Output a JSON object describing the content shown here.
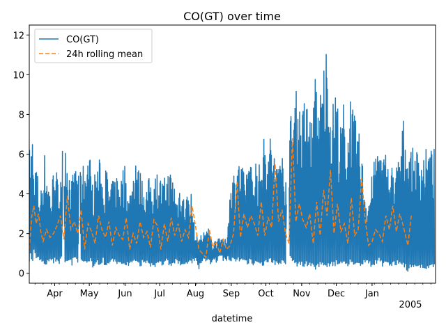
{
  "chart_data": {
    "type": "line",
    "title": "CO(GT) over time",
    "xlabel": "datetime",
    "ylabel": "",
    "xlim": [
      "2004-03-10",
      "2005-02-25"
    ],
    "ylim": [
      -0.5,
      12.5
    ],
    "x_ticks": [
      {
        "date": "2004-04-01",
        "label": "Apr"
      },
      {
        "date": "2004-05-01",
        "label": "May"
      },
      {
        "date": "2004-06-01",
        "label": "Jun"
      },
      {
        "date": "2004-07-01",
        "label": "Jul"
      },
      {
        "date": "2004-08-01",
        "label": "Aug"
      },
      {
        "date": "2004-09-01",
        "label": "Sep"
      },
      {
        "date": "2004-10-01",
        "label": "Oct"
      },
      {
        "date": "2004-11-01",
        "label": "Nov"
      },
      {
        "date": "2004-12-01",
        "label": "Dec"
      },
      {
        "date": "2005-01-01",
        "label": "Jan"
      }
    ],
    "x_year_label": "2005",
    "y_ticks": [
      0,
      2,
      4,
      6,
      8,
      10,
      12
    ],
    "legend_position": "upper-left",
    "series": [
      {
        "name": "CO(GT)",
        "color": "#1f77b4",
        "style": "solid",
        "x": [
          "2004-03-10",
          "2004-03-11",
          "2004-03-12",
          "2004-03-13",
          "2004-03-14",
          "2004-03-16",
          "2004-03-18",
          "2004-03-20",
          "2004-03-23",
          "2004-03-26",
          "2004-03-29",
          "2004-04-01",
          "2004-04-04",
          "2004-04-07",
          "2004-04-10",
          "2004-04-13",
          "2004-04-16",
          "2004-04-19",
          "2004-04-22",
          "2004-04-25",
          "2004-04-28",
          "2004-05-01",
          "2004-05-04",
          "2004-05-07",
          "2004-05-10",
          "2004-05-13",
          "2004-05-16",
          "2004-05-19",
          "2004-05-22",
          "2004-05-25",
          "2004-05-28",
          "2004-06-01",
          "2004-06-04",
          "2004-06-07",
          "2004-06-10",
          "2004-06-13",
          "2004-06-16",
          "2004-06-19",
          "2004-06-22",
          "2004-06-25",
          "2004-06-28",
          "2004-07-01",
          "2004-07-04",
          "2004-07-07",
          "2004-07-10",
          "2004-07-13",
          "2004-07-16",
          "2004-07-19",
          "2004-07-22",
          "2004-07-25",
          "2004-07-28",
          "2004-08-01",
          "2004-08-04",
          "2004-08-07",
          "2004-08-10",
          "2004-08-13",
          "2004-08-16",
          "2004-08-19",
          "2004-08-22",
          "2004-08-25",
          "2004-08-28",
          "2004-09-01",
          "2004-09-04",
          "2004-09-07",
          "2004-09-10",
          "2004-09-13",
          "2004-09-16",
          "2004-09-19",
          "2004-09-22",
          "2004-09-25",
          "2004-09-28",
          "2004-10-01",
          "2004-10-04",
          "2004-10-07",
          "2004-10-10",
          "2004-10-13",
          "2004-10-16",
          "2004-10-19",
          "2004-10-22",
          "2004-10-25",
          "2004-10-28",
          "2004-11-01",
          "2004-11-04",
          "2004-11-07",
          "2004-11-10",
          "2004-11-13",
          "2004-11-16",
          "2004-11-19",
          "2004-11-22",
          "2004-11-25",
          "2004-11-28",
          "2004-12-01",
          "2004-12-04",
          "2004-12-07",
          "2004-12-10",
          "2004-12-13",
          "2004-12-16",
          "2004-12-19",
          "2004-12-22",
          "2004-12-25",
          "2004-12-28",
          "2005-01-01",
          "2005-01-04",
          "2005-01-07",
          "2005-01-10",
          "2005-01-13",
          "2005-01-16",
          "2005-01-19",
          "2005-01-22",
          "2005-01-25",
          "2005-01-28",
          "2005-02-01",
          "2005-02-04"
        ],
        "low": [
          0.6,
          0.8,
          0.5,
          0.4,
          1.0,
          0.5,
          0.6,
          0.5,
          0.3,
          0.4,
          0.5,
          0.5,
          0.4,
          0.6,
          0.3,
          0.5,
          0.4,
          0.7,
          0.3,
          0.5,
          0.4,
          0.6,
          0.3,
          0.5,
          0.4,
          0.5,
          0.3,
          0.4,
          0.5,
          0.3,
          0.4,
          0.4,
          0.3,
          0.5,
          0.4,
          0.3,
          0.4,
          0.5,
          0.3,
          0.4,
          0.3,
          0.4,
          0.3,
          0.5,
          0.3,
          0.4,
          0.5,
          0.3,
          0.4,
          0.3,
          0.4,
          0.6,
          0.1,
          0.5,
          0.6,
          0.4,
          0.6,
          0.5,
          0.7,
          0.6,
          0.6,
          0.5,
          0.6,
          0.6,
          0.5,
          0.4,
          0.5,
          0.4,
          0.4,
          0.5,
          0.4,
          0.4,
          0.6,
          0.5,
          0.4,
          0.5,
          0.4,
          0.5,
          0.6,
          0.5,
          0.3,
          0.4,
          0.3,
          0.4,
          0.3,
          0.2,
          0.3,
          0.4,
          0.3,
          0.3,
          0.3,
          0.4,
          0.3,
          0.4,
          0.3,
          0.5,
          0.4,
          0.4,
          0.3,
          0.5,
          0.4,
          0.3,
          0.4,
          0.5,
          0.3,
          0.4,
          0.4,
          0.3,
          0.4,
          0.5,
          0.3,
          0.1,
          0.2
        ],
        "high": [
          6.7,
          5.5,
          7.0,
          8.1,
          4.5,
          6.0,
          4.5,
          4.2,
          6.2,
          5.2,
          4.0,
          6.3,
          4.5,
          6.2,
          7.3,
          5.6,
          4.8,
          5.4,
          4.9,
          5.4,
          5.9,
          6.4,
          4.5,
          5.5,
          5.8,
          4.8,
          5.5,
          4.3,
          4.8,
          5.3,
          4.9,
          5.7,
          3.9,
          4.8,
          6.4,
          5.3,
          4.9,
          4.3,
          4.9,
          4.8,
          5.2,
          5.1,
          4.6,
          5.2,
          5.3,
          5.0,
          3.9,
          5.0,
          3.9,
          4.1,
          4.3,
          1.8,
          2.0,
          1.9,
          2.5,
          2.2,
          1.5,
          1.8,
          2.0,
          1.6,
          1.8,
          5.0,
          5.3,
          5.8,
          5.5,
          4.9,
          6.4,
          5.2,
          6.0,
          5.4,
          7.0,
          6.8,
          7.1,
          6.8,
          5.5,
          6.9,
          5.9,
          5.4,
          8.0,
          8.4,
          9.5,
          7.9,
          9.3,
          8.4,
          7.8,
          10.2,
          8.9,
          9.9,
          11.9,
          9.3,
          8.6,
          9.9,
          7.0,
          8.9,
          6.4,
          9.4,
          8.1,
          7.5,
          6.8,
          4.9,
          3.7,
          5.0,
          6.1,
          7.1,
          5.6,
          6.5,
          4.9,
          5.7,
          5.5,
          6.2,
          7.9,
          6.5,
          6.3
        ]
      },
      {
        "name": "24h rolling mean",
        "color": "#ff7f0e",
        "style": "dashed",
        "x": [
          "2004-03-10",
          "2004-03-12",
          "2004-03-14",
          "2004-03-16",
          "2004-03-18",
          "2004-03-20",
          "2004-03-22",
          "2004-03-25",
          "2004-03-28",
          "2004-03-31",
          "2004-04-03",
          "2004-04-06",
          "2004-04-09",
          "2004-04-12",
          "2004-04-15",
          "2004-04-18",
          "2004-04-21",
          "2004-04-24",
          "2004-04-27",
          "2004-04-30",
          "2004-05-03",
          "2004-05-06",
          "2004-05-09",
          "2004-05-12",
          "2004-05-15",
          "2004-05-18",
          "2004-05-21",
          "2004-05-24",
          "2004-05-27",
          "2004-05-30",
          "2004-06-02",
          "2004-06-05",
          "2004-06-08",
          "2004-06-11",
          "2004-06-14",
          "2004-06-17",
          "2004-06-20",
          "2004-06-23",
          "2004-06-26",
          "2004-06-29",
          "2004-07-02",
          "2004-07-05",
          "2004-07-08",
          "2004-07-11",
          "2004-07-14",
          "2004-07-17",
          "2004-07-20",
          "2004-07-23",
          "2004-07-26",
          "2004-07-29",
          "2004-08-01",
          "2004-08-04",
          "2004-08-07",
          "2004-08-10",
          "2004-08-13",
          "2004-08-16",
          "2004-08-19",
          "2004-08-22",
          "2004-08-25",
          "2004-08-28",
          "2004-08-31",
          "2004-09-03",
          "2004-09-06",
          "2004-09-09",
          "2004-09-12",
          "2004-09-15",
          "2004-09-18",
          "2004-09-21",
          "2004-09-24",
          "2004-09-27",
          "2004-09-30",
          "2004-10-03",
          "2004-10-06",
          "2004-10-09",
          "2004-10-12",
          "2004-10-15",
          "2004-10-18",
          "2004-10-21",
          "2004-10-24",
          "2004-10-27",
          "2004-10-30",
          "2004-11-02",
          "2004-11-05",
          "2004-11-08",
          "2004-11-11",
          "2004-11-14",
          "2004-11-17",
          "2004-11-20",
          "2004-11-23",
          "2004-11-26",
          "2004-11-29",
          "2004-12-02",
          "2004-12-05",
          "2004-12-08",
          "2004-12-11",
          "2004-12-14",
          "2004-12-17",
          "2004-12-20",
          "2004-12-23",
          "2004-12-26",
          "2004-12-29",
          "2005-01-01",
          "2005-01-04",
          "2005-01-07",
          "2005-01-10",
          "2005-01-13",
          "2005-01-16",
          "2005-01-19",
          "2005-01-22",
          "2005-01-25",
          "2005-01-28",
          "2005-02-01",
          "2005-02-04"
        ],
        "y": [
          1.2,
          2.8,
          3.4,
          2.5,
          3.0,
          2.1,
          1.6,
          2.2,
          1.8,
          2.0,
          2.4,
          2.9,
          1.7,
          3.9,
          2.2,
          2.6,
          2.0,
          3.2,
          1.2,
          2.5,
          2.1,
          1.5,
          2.9,
          2.2,
          1.8,
          2.6,
          1.4,
          2.3,
          1.9,
          1.7,
          2.8,
          1.2,
          2.0,
          1.5,
          2.6,
          1.8,
          2.1,
          1.3,
          2.7,
          2.4,
          1.2,
          2.5,
          1.6,
          2.8,
          1.9,
          2.5,
          1.6,
          2.2,
          1.8,
          3.4,
          2.4,
          1.2,
          1.0,
          0.8,
          2.2,
          1.3,
          1.6,
          1.0,
          1.7,
          1.2,
          1.4,
          2.0,
          4.6,
          1.8,
          3.0,
          2.3,
          2.9,
          2.5,
          1.9,
          3.6,
          1.9,
          2.8,
          2.3,
          5.5,
          2.6,
          3.2,
          2.0,
          1.5,
          6.8,
          2.6,
          3.5,
          2.7,
          2.3,
          3.0,
          1.5,
          3.6,
          1.9,
          4.2,
          2.9,
          5.2,
          2.0,
          3.5,
          2.1,
          2.5,
          1.5,
          3.8,
          1.9,
          2.2,
          4.8,
          2.7,
          1.4,
          1.6,
          2.2,
          2.0,
          1.6,
          2.9,
          2.2,
          3.4,
          2.1,
          3.0,
          2.4,
          1.4,
          2.9
        ]
      }
    ]
  }
}
